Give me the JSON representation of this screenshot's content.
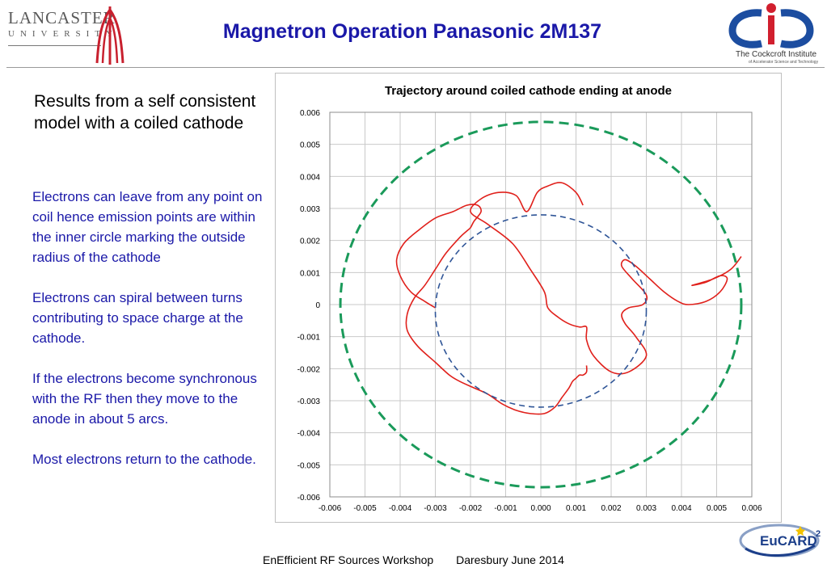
{
  "header": {
    "university_name": "LANCASTER",
    "university_sub": "UNIVERSITY",
    "title": "Magnetron Operation Panasonic 2M137",
    "institute_name": "The Cockcroft Institute",
    "institute_sub": "of Accelerator Science and Technology"
  },
  "intro_text": "Results from a self consistent model with a coiled cathode",
  "bullets": [
    "Electrons can leave from any point on coil hence emission points are within the inner circle marking the outside radius of the cathode",
    "Electrons can spiral between turns contributing to space charge at the cathode.",
    "If the electrons become synchronous with the RF then they move to the anode in about 5 arcs.",
    "Most electrons return to the cathode."
  ],
  "chart_data": {
    "type": "scatter",
    "title": "Trajectory around coiled cathode ending at anode",
    "xlim": [
      -0.006,
      0.006
    ],
    "ylim": [
      -0.006,
      0.006
    ],
    "xticks": [
      "-0.006",
      "-0.005",
      "-0.004",
      "-0.003",
      "-0.002",
      "-0.001",
      "0.000",
      "0.001",
      "0.002",
      "0.003",
      "0.004",
      "0.005",
      "0.006"
    ],
    "yticks": [
      "0.006",
      "0.005",
      "0.004",
      "0.003",
      "0.002",
      "0.001",
      "0",
      "-0.001",
      "-0.002",
      "-0.003",
      "-0.004",
      "-0.005",
      "-0.006"
    ],
    "grid": true,
    "series": [
      {
        "role": "trajectory",
        "color": "#e0201b",
        "style": "solid",
        "x": [
          0.0012,
          0.001,
          0.0006,
          0.0002,
          -0.0001,
          -0.0004,
          -0.0007,
          -0.0012,
          -0.0017,
          -0.002,
          -0.0015,
          -0.0008,
          -0.0003,
          0.0001,
          0.0002,
          0.0005,
          0.0008,
          0.0011,
          0.0013,
          0.0013,
          0.0015,
          0.002,
          0.0025,
          0.003,
          0.0027,
          0.0024,
          0.0023,
          0.0025,
          0.0029,
          0.003,
          0.0026,
          0.0023,
          0.0024,
          0.0027,
          0.0031,
          0.0035,
          0.0039,
          0.0042,
          0.0047,
          0.0051,
          0.0053,
          0.0051,
          0.0047,
          0.0043,
          0.0049,
          0.0054,
          0.0057
        ],
        "y": [
          0.0031,
          0.0035,
          0.0038,
          0.0037,
          0.0035,
          0.0029,
          0.0034,
          0.0035,
          0.0033,
          0.0029,
          0.0025,
          0.0019,
          0.0011,
          0.0004,
          -0.0001,
          -0.0004,
          -0.0006,
          -0.0007,
          -0.0007,
          -0.0011,
          -0.0016,
          -0.0021,
          -0.0021,
          -0.0016,
          -0.001,
          -0.0006,
          -0.0003,
          -0.0001,
          0.0,
          0.0003,
          0.0008,
          0.0012,
          0.0014,
          0.0012,
          0.0008,
          0.0004,
          0.0001,
          0.0,
          0.0001,
          0.0004,
          0.0008,
          0.0009,
          0.0007,
          0.0006,
          0.0008,
          0.0011,
          0.0015
        ]
      },
      {
        "role": "trajectory",
        "color": "#e0201b",
        "style": "solid",
        "x": [
          -0.003,
          -0.0033,
          -0.0037,
          -0.004,
          -0.0041,
          -0.0039,
          -0.0035,
          -0.003,
          -0.0025,
          -0.0021,
          -0.0018,
          -0.0017,
          -0.0019,
          -0.002,
          -0.0021,
          -0.0023,
          -0.0027,
          -0.003,
          -0.0033,
          -0.0036,
          -0.0038,
          -0.0038,
          -0.0035,
          -0.003,
          -0.0026,
          -0.0023,
          -0.0019,
          -0.0015,
          -0.0011,
          -0.0007,
          -0.0003,
          0.0001,
          0.0004,
          0.0006,
          0.0008,
          0.0009,
          0.001,
          0.0011,
          0.0012,
          0.0013,
          0.0013
        ],
        "y": [
          -0.0001,
          0.0001,
          0.0004,
          0.0009,
          0.0014,
          0.0019,
          0.0023,
          0.0027,
          0.0029,
          0.0031,
          0.0031,
          0.0029,
          0.0026,
          0.0024,
          0.0023,
          0.0021,
          0.0016,
          0.0011,
          0.0006,
          0.0002,
          -0.0003,
          -0.0008,
          -0.0013,
          -0.0018,
          -0.0022,
          -0.0024,
          -0.0026,
          -0.0028,
          -0.0031,
          -0.0033,
          -0.0034,
          -0.0034,
          -0.0032,
          -0.0029,
          -0.0026,
          -0.0024,
          -0.0023,
          -0.0022,
          -0.0022,
          -0.0021,
          -0.0019
        ]
      },
      {
        "role": "inner-circle",
        "color": "#2f5597",
        "style": "dashed",
        "center": [
          0.0,
          -0.0002
        ],
        "radius": 0.003
      },
      {
        "role": "anode-circle",
        "color": "#1a9a5a",
        "style": "dashed",
        "center": [
          0.0,
          0.0
        ],
        "radius": 0.0057
      }
    ]
  },
  "footer": {
    "event": "EnEfficient RF Sources Workshop",
    "place_date": "Daresbury June 2014"
  },
  "eucard": {
    "name": "EuCARD",
    "sup": "2"
  }
}
